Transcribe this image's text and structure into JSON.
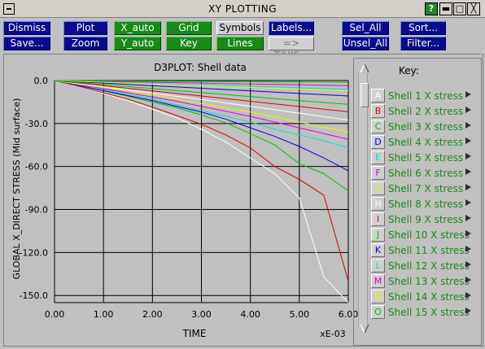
{
  "window": {
    "title": "XY PLOTTING",
    "help_label": "?",
    "minimize_label": "▬",
    "maximize_label": "□",
    "close_label": "╳"
  },
  "toolbar": {
    "dismiss": "Dismiss",
    "save": "Save...",
    "plot": "Plot",
    "zoom": "Zoom",
    "x_auto": "X_auto",
    "y_auto": "Y_auto",
    "grid": "Grid",
    "key": "Key",
    "symbols": "Symbols",
    "lines": "Lines",
    "labels": "Labels...",
    "t_his": "=> T/HIS...",
    "sel_all": "Sel_All",
    "unsel_all": "Unsel_All",
    "sort": "Sort...",
    "filter": "Filter..."
  },
  "colors": {
    "blue_button": "#0a0a8c",
    "green_button": "#188a18",
    "key_text": "#1a8a1a"
  },
  "key": {
    "title": "Key:",
    "items": [
      {
        "letter": "A",
        "label": "Shell 1 X stress",
        "color": "#ffffff"
      },
      {
        "letter": "B",
        "label": "Shell 2 X stress",
        "color": "#e00000"
      },
      {
        "letter": "C",
        "label": "Shell 3 X stress",
        "color": "#00c000"
      },
      {
        "letter": "D",
        "label": "Shell 4 X stress",
        "color": "#0000e0"
      },
      {
        "letter": "E",
        "label": "Shell 5 X stress",
        "color": "#00e0e0"
      },
      {
        "letter": "F",
        "label": "Shell 6 X stress",
        "color": "#e000e0"
      },
      {
        "letter": "G",
        "label": "Shell 7 X stress",
        "color": "#f0f000"
      },
      {
        "letter": "H",
        "label": "Shell 8 X stress",
        "color": "#ffffff"
      },
      {
        "letter": "I",
        "label": "Shell 9 X stress",
        "color": "#e00000"
      },
      {
        "letter": "J",
        "label": "Shell 10 X stress",
        "color": "#00c000"
      },
      {
        "letter": "K",
        "label": "Shell 11 X stress",
        "color": "#0000e0"
      },
      {
        "letter": "L",
        "label": "Shell 12 X stress",
        "color": "#00e0e0"
      },
      {
        "letter": "M",
        "label": "Shell 13 X stress",
        "color": "#e000e0"
      },
      {
        "letter": "N",
        "label": "Shell 14 X stress",
        "color": "#f0f000"
      },
      {
        "letter": "O",
        "label": "Shell 15 X stress",
        "color": "#00c000"
      }
    ]
  },
  "chart_data": {
    "type": "line",
    "title": "D3PLOT: Shell data",
    "xlabel": "TIME",
    "x_multiplier": "xE-03",
    "ylabel": "GLOBAL X_DIRECT STRESS (Mid surface)",
    "xlim": [
      0,
      6
    ],
    "ylim": [
      -155,
      0
    ],
    "x_ticks": [
      "0.00",
      "1.00",
      "2.00",
      "3.00",
      "4.00",
      "5.00",
      "6.00"
    ],
    "y_ticks": [
      "0.0",
      "-30.0",
      "-60.0",
      "-90.0",
      "-120.0",
      "-150.0"
    ],
    "y_tick_values": [
      0,
      -30,
      -60,
      -90,
      -120,
      -150
    ],
    "x_tick_values": [
      0,
      1,
      2,
      3,
      4,
      5,
      6
    ],
    "grid": true,
    "background": "#c0c0c0",
    "x": [
      0,
      0.5,
      1,
      1.5,
      2,
      2.5,
      3,
      3.5,
      4,
      4.5,
      5,
      5.5,
      6
    ],
    "series": [
      {
        "color": "#ffffff",
        "values": [
          0,
          -4,
          -9,
          -14,
          -20,
          -26,
          -34,
          -43,
          -54,
          -65,
          -82,
          -137,
          -155
        ]
      },
      {
        "color": "#e00000",
        "values": [
          0,
          -4,
          -8.5,
          -13,
          -18.5,
          -24.5,
          -30.5,
          -38,
          -47,
          -60,
          -69,
          -80,
          -140
        ]
      },
      {
        "color": "#00c000",
        "values": [
          0,
          -3.5,
          -7,
          -11,
          -15,
          -19,
          -24,
          -29.5,
          -37,
          -45,
          -58,
          -65,
          -77
        ]
      },
      {
        "color": "#0000e0",
        "values": [
          0,
          -3.5,
          -7,
          -10.5,
          -14,
          -18,
          -22,
          -27,
          -33,
          -39,
          -46,
          -54,
          -63
        ]
      },
      {
        "color": "#00e0e0",
        "values": [
          0,
          -3,
          -6,
          -9.5,
          -13,
          -17,
          -21,
          -25,
          -29,
          -34,
          -38,
          -42,
          -47
        ]
      },
      {
        "color": "#e000e0",
        "values": [
          0,
          -2.8,
          -5.6,
          -8.5,
          -11.5,
          -14.5,
          -18,
          -21.5,
          -25,
          -29,
          -33,
          -37,
          -41
        ]
      },
      {
        "color": "#f0f000",
        "values": [
          0,
          -2.5,
          -5,
          -7.5,
          -10,
          -13,
          -16,
          -19,
          -22,
          -25.5,
          -29,
          -32.5,
          -36
        ]
      },
      {
        "color": "#ffffff",
        "values": [
          0,
          -2.2,
          -4.4,
          -6.6,
          -8.8,
          -11,
          -13.3,
          -15.6,
          -18,
          -20.4,
          -22.8,
          -25.2,
          -27.5
        ]
      },
      {
        "color": "#e00000",
        "values": [
          0,
          -1.8,
          -3.6,
          -5.4,
          -7.2,
          -9,
          -10.8,
          -12.6,
          -14.5,
          -16.3,
          -18.1,
          -20,
          -21.8
        ]
      },
      {
        "color": "#00c000",
        "values": [
          0,
          -1.4,
          -2.8,
          -4.2,
          -5.6,
          -7,
          -8.4,
          -9.8,
          -11.2,
          -12.6,
          -14,
          -15.3,
          -16.6
        ]
      },
      {
        "color": "#0000e0",
        "values": [
          0,
          -0.9,
          -1.8,
          -2.7,
          -3.6,
          -4.5,
          -5.4,
          -6.3,
          -7.2,
          -8.1,
          -9,
          -9.9,
          -10.8
        ]
      },
      {
        "color": "#00e0e0",
        "values": [
          0,
          -0.5,
          -1,
          -1.5,
          -2,
          -2.5,
          -3,
          -3.5,
          -4,
          -4.5,
          -5,
          -5.5,
          -6
        ]
      },
      {
        "color": "#e000e0",
        "values": [
          0,
          -0.3,
          -0.6,
          -0.9,
          -1.2,
          -1.5,
          -1.8,
          -2.1,
          -2.4,
          -2.7,
          -3,
          -3.3,
          -3.6
        ]
      },
      {
        "color": "#f0f000",
        "values": [
          0,
          -0.6,
          -1.2,
          -1.8,
          -2.4,
          -3,
          -3.6,
          -4.2,
          -4.8,
          -5.4,
          -6,
          -6.6,
          -7.2
        ]
      },
      {
        "color": "#00c000",
        "values": [
          0,
          -0.1,
          -0.2,
          -0.3,
          -0.4,
          -0.5,
          -0.6,
          -0.7,
          -0.8,
          -0.9,
          -1,
          -1.1,
          -1.2
        ]
      }
    ]
  }
}
